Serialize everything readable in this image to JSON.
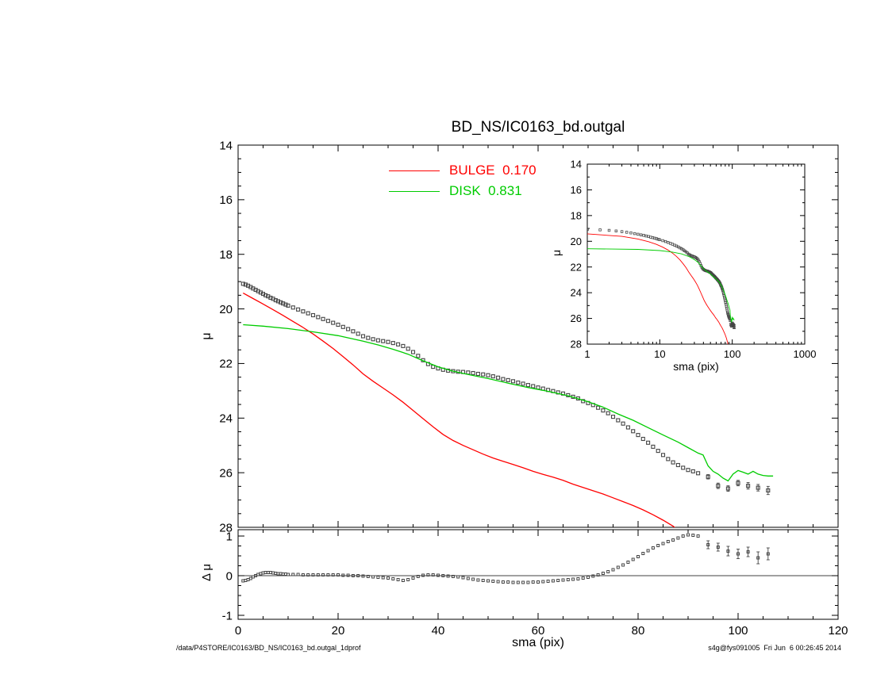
{
  "title": "BD_NS/IC0163_bd.outgal",
  "footer": {
    "left": "/data/P4STORE/IC0163/BD_NS/IC0163_bd.outgal_1dprof",
    "right": "s4g@fys091005  Fri Jun  6 00:26:45 2014"
  },
  "legend": [
    {
      "label": "BULGE  0.170",
      "color": "#ff0000"
    },
    {
      "label": "DISK  0.831",
      "color": "#00cc00"
    }
  ],
  "colors": {
    "bulge": "#ff0000",
    "disk": "#00cc00",
    "data": "#454545",
    "axes": "#000000",
    "background": "#ffffff"
  },
  "chart_data": [
    {
      "type": "scatter+line",
      "name": "surface-brightness-profile",
      "xlabel": "sma (pix)",
      "ylabel": "μ",
      "xlim": [
        0,
        120
      ],
      "ylim": [
        14,
        28
      ],
      "y_inverted": true,
      "xticks": [
        0,
        20,
        40,
        60,
        80,
        100,
        120
      ],
      "yticks": [
        14,
        16,
        18,
        20,
        22,
        24,
        26,
        28
      ],
      "grid": false,
      "legend_position": "top-inside",
      "series": [
        {
          "name": "observed",
          "style": "squares",
          "color": "#454545",
          "x": [
            1,
            1.5,
            2,
            2.5,
            3,
            3.5,
            4,
            4.5,
            5,
            5.5,
            6,
            6.5,
            7,
            7.5,
            8,
            8.5,
            9,
            9.5,
            10,
            11,
            12,
            13,
            14,
            15,
            16,
            17,
            18,
            19,
            20,
            21,
            22,
            23,
            24,
            25,
            26,
            27,
            28,
            29,
            30,
            31,
            32,
            33,
            34,
            35,
            36,
            37,
            38,
            39,
            40,
            41,
            42,
            43,
            44,
            45,
            46,
            47,
            48,
            49,
            50,
            51,
            52,
            53,
            54,
            55,
            56,
            57,
            58,
            59,
            60,
            61,
            62,
            63,
            64,
            65,
            66,
            67,
            68,
            69,
            70,
            71,
            72,
            73,
            74,
            75,
            76,
            77,
            78,
            79,
            80,
            81,
            82,
            83,
            84,
            85,
            86,
            87,
            88,
            89,
            90,
            91,
            92
          ],
          "y": [
            19.08,
            19.11,
            19.15,
            19.2,
            19.25,
            19.3,
            19.35,
            19.4,
            19.45,
            19.5,
            19.54,
            19.59,
            19.63,
            19.68,
            19.72,
            19.76,
            19.8,
            19.84,
            19.88,
            19.95,
            20.02,
            20.09,
            20.16,
            20.23,
            20.3,
            20.37,
            20.44,
            20.51,
            20.58,
            20.66,
            20.74,
            20.82,
            20.91,
            21.0,
            21.06,
            21.11,
            21.15,
            21.18,
            21.21,
            21.25,
            21.3,
            21.36,
            21.46,
            21.58,
            21.72,
            21.88,
            22.02,
            22.12,
            22.18,
            22.23,
            22.26,
            22.28,
            22.3,
            22.31,
            22.33,
            22.35,
            22.38,
            22.4,
            22.43,
            22.47,
            22.52,
            22.57,
            22.61,
            22.65,
            22.7,
            22.74,
            22.79,
            22.83,
            22.88,
            22.92,
            22.97,
            23.01,
            23.06,
            23.1,
            23.16,
            23.22,
            23.28,
            23.38,
            23.45,
            23.52,
            23.62,
            23.72,
            23.82,
            23.95,
            24.08,
            24.2,
            24.34,
            24.48,
            24.62,
            24.76,
            24.9,
            25.05,
            25.2,
            25.35,
            25.5,
            25.62,
            25.72,
            25.82,
            25.9,
            25.95,
            26.02
          ]
        },
        {
          "name": "observed-outer",
          "style": "squares",
          "color": "#454545",
          "x": [
            94,
            96,
            98,
            100,
            102,
            104,
            106
          ],
          "y": [
            26.15,
            26.48,
            26.58,
            26.38,
            26.48,
            26.55,
            26.65
          ],
          "yerr": [
            0.08,
            0.1,
            0.1,
            0.1,
            0.12,
            0.12,
            0.15
          ]
        },
        {
          "name": "bulge",
          "style": "line",
          "color": "#ff0000",
          "x": [
            1,
            3,
            5,
            7,
            9,
            11,
            13,
            15,
            17,
            19,
            21,
            23,
            25,
            27,
            29,
            31,
            33,
            35,
            37,
            39,
            41,
            43,
            45,
            47,
            49,
            51,
            53,
            55,
            57,
            59,
            61,
            63,
            65,
            67,
            69,
            71,
            73,
            75,
            77,
            79,
            81,
            83,
            85,
            87,
            88
          ],
          "y": [
            19.42,
            19.62,
            19.82,
            20.03,
            20.24,
            20.46,
            20.68,
            20.92,
            21.18,
            21.45,
            21.75,
            22.05,
            22.38,
            22.65,
            22.9,
            23.15,
            23.42,
            23.72,
            24.02,
            24.32,
            24.6,
            24.82,
            25.0,
            25.16,
            25.32,
            25.46,
            25.58,
            25.7,
            25.82,
            25.95,
            26.06,
            26.16,
            26.28,
            26.42,
            26.54,
            26.66,
            26.78,
            26.92,
            27.06,
            27.2,
            27.36,
            27.54,
            27.74,
            27.96,
            28.1
          ]
        },
        {
          "name": "disk",
          "style": "line",
          "color": "#00cc00",
          "x": [
            1,
            5,
            10,
            15,
            20,
            25,
            28,
            31,
            34,
            37,
            40,
            43,
            46,
            50,
            54,
            58,
            62,
            66,
            70,
            73,
            76,
            79,
            82,
            85,
            88,
            90,
            92,
            93,
            94,
            95,
            96,
            97,
            98,
            99,
            100,
            101,
            102,
            103,
            104,
            105,
            106,
            107
          ],
          "y": [
            20.58,
            20.63,
            20.72,
            20.84,
            20.98,
            21.18,
            21.32,
            21.48,
            21.66,
            21.9,
            22.12,
            22.28,
            22.4,
            22.55,
            22.72,
            22.88,
            23.02,
            23.18,
            23.4,
            23.6,
            23.85,
            24.08,
            24.35,
            24.62,
            24.88,
            25.08,
            25.28,
            25.35,
            25.75,
            25.95,
            26.05,
            26.2,
            26.3,
            26.05,
            25.92,
            25.98,
            26.05,
            25.95,
            26.05,
            26.1,
            26.12,
            26.12
          ]
        }
      ]
    },
    {
      "type": "scatter",
      "name": "residuals",
      "xlabel": "sma (pix)",
      "ylabel": "Δ μ",
      "xlim": [
        0,
        120
      ],
      "ylim": [
        -1,
        1
      ],
      "xticks": [
        0,
        20,
        40,
        60,
        80,
        100,
        120
      ],
      "yticks": [
        -1,
        0,
        1
      ],
      "zero_line": true,
      "series": [
        {
          "name": "residual",
          "style": "squares",
          "color": "#454545",
          "x": [
            1,
            1.5,
            2,
            2.5,
            3,
            3.5,
            4,
            4.5,
            5,
            5.5,
            6,
            6.5,
            7,
            7.5,
            8,
            8.5,
            9,
            9.5,
            10,
            11,
            12,
            13,
            14,
            15,
            16,
            17,
            18,
            19,
            20,
            21,
            22,
            23,
            24,
            25,
            26,
            27,
            28,
            29,
            30,
            31,
            32,
            33,
            34,
            35,
            36,
            37,
            38,
            39,
            40,
            41,
            42,
            43,
            44,
            45,
            46,
            47,
            48,
            49,
            50,
            51,
            52,
            53,
            54,
            55,
            56,
            57,
            58,
            59,
            60,
            61,
            62,
            63,
            64,
            65,
            66,
            67,
            68,
            69,
            70,
            71,
            72,
            73,
            74,
            75,
            76,
            77,
            78,
            79,
            80,
            81,
            82,
            83,
            84,
            85,
            86,
            87,
            88,
            89,
            90,
            91,
            92
          ],
          "y": [
            -0.13,
            -0.12,
            -0.1,
            -0.07,
            -0.03,
            0.0,
            0.03,
            0.05,
            0.07,
            0.08,
            0.08,
            0.08,
            0.07,
            0.06,
            0.05,
            0.05,
            0.04,
            0.04,
            0.03,
            0.03,
            0.03,
            0.02,
            0.02,
            0.02,
            0.02,
            0.02,
            0.02,
            0.02,
            0.02,
            0.01,
            0.01,
            0.0,
            0.0,
            -0.01,
            -0.02,
            -0.03,
            -0.04,
            -0.05,
            -0.06,
            -0.08,
            -0.1,
            -0.12,
            -0.1,
            -0.06,
            -0.02,
            0.01,
            0.02,
            0.02,
            0.01,
            0.0,
            -0.01,
            -0.02,
            -0.03,
            -0.05,
            -0.07,
            -0.09,
            -0.11,
            -0.12,
            -0.13,
            -0.14,
            -0.15,
            -0.16,
            -0.16,
            -0.17,
            -0.17,
            -0.17,
            -0.17,
            -0.16,
            -0.16,
            -0.15,
            -0.14,
            -0.13,
            -0.12,
            -0.11,
            -0.1,
            -0.09,
            -0.08,
            -0.06,
            -0.04,
            -0.01,
            0.02,
            0.06,
            0.1,
            0.15,
            0.21,
            0.27,
            0.34,
            0.41,
            0.48,
            0.56,
            0.63,
            0.7,
            0.76,
            0.81,
            0.86,
            0.9,
            0.95,
            1.0,
            1.03,
            1.02,
            1.0
          ]
        },
        {
          "name": "residual-outer",
          "style": "squares",
          "color": "#454545",
          "x": [
            94,
            96,
            98,
            100,
            102,
            104,
            106
          ],
          "y": [
            0.78,
            0.72,
            0.62,
            0.55,
            0.6,
            0.45,
            0.55
          ],
          "yerr": [
            0.1,
            0.1,
            0.12,
            0.12,
            0.12,
            0.15,
            0.15
          ]
        }
      ]
    },
    {
      "type": "scatter+line",
      "name": "log-profile-inset",
      "xlabel": "sma (pix)",
      "ylabel": "μ",
      "xscale": "log",
      "xlim": [
        1,
        1000
      ],
      "ylim": [
        14,
        28
      ],
      "y_inverted": true,
      "xticks": [
        1,
        10,
        100,
        1000
      ],
      "yticks": [
        14,
        16,
        18,
        20,
        22,
        24,
        26,
        28
      ],
      "series_ref": 0
    }
  ]
}
